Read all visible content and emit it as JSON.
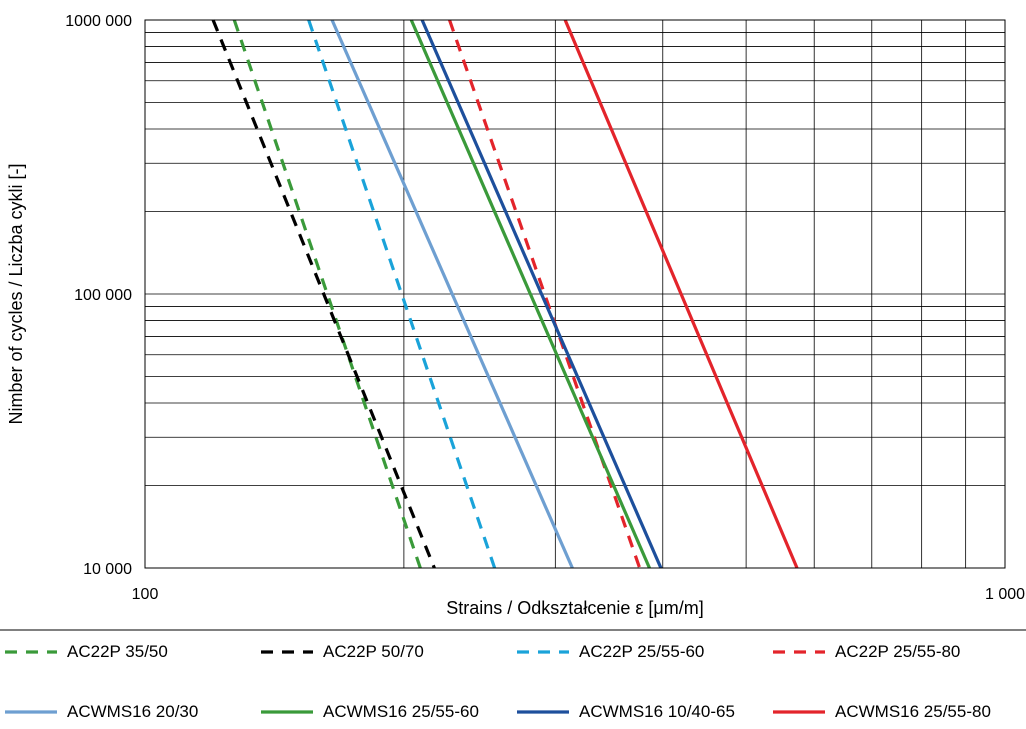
{
  "chart_data": {
    "type": "line",
    "x_scale": "log",
    "y_scale": "log",
    "xlabel": "Strains / Odkształcenie ε [μm/m]",
    "ylabel": "Nimber of cycles / Liczba cykli [-]",
    "xlim": [
      100,
      1000
    ],
    "ylim": [
      10000,
      1000000
    ],
    "x_ticks": [
      "100",
      "1 000"
    ],
    "y_ticks": [
      "10 000",
      "100 000",
      "1000 000"
    ],
    "grid": true,
    "legend_position": "bottom",
    "series": [
      {
        "name": "AC22P 35/50",
        "color": "#3a9a3a",
        "style": "dashed",
        "x": [
          127,
          209
        ],
        "y": [
          1000000,
          10000
        ]
      },
      {
        "name": "AC22P 50/70",
        "color": "#000000",
        "style": "dashed",
        "x": [
          120,
          217
        ],
        "y": [
          1000000,
          10000
        ]
      },
      {
        "name": "AC22P 25/55-60",
        "color": "#1aa3d9",
        "style": "dashed",
        "x": [
          155,
          255
        ],
        "y": [
          1000000,
          10000
        ]
      },
      {
        "name": "AC22P 25/55-80",
        "color": "#e3242b",
        "style": "dashed",
        "x": [
          226,
          376
        ],
        "y": [
          1000000,
          10000
        ]
      },
      {
        "name": "ACWMS16 20/30",
        "color": "#6e9fd1",
        "style": "solid",
        "x": [
          165,
          314
        ],
        "y": [
          1000000,
          10000
        ]
      },
      {
        "name": "ACWMS16 25/55-60",
        "color": "#3a9a3a",
        "style": "solid",
        "x": [
          204,
          386
        ],
        "y": [
          1000000,
          10000
        ]
      },
      {
        "name": "ACWMS16 10/40-65",
        "color": "#1d4f9c",
        "style": "solid",
        "x": [
          210,
          398
        ],
        "y": [
          1000000,
          10000
        ]
      },
      {
        "name": "ACWMS16 25/55-80",
        "color": "#e3242b",
        "style": "solid",
        "x": [
          308,
          573
        ],
        "y": [
          1000000,
          10000
        ]
      }
    ]
  },
  "legend_items": [
    "AC22P 35/50",
    "AC22P 50/70",
    "AC22P 25/55-60",
    "AC22P 25/55-80",
    "ACWMS16 20/30",
    "ACWMS16 25/55-60",
    "ACWMS16 10/40-65",
    "ACWMS16 25/55-80"
  ]
}
